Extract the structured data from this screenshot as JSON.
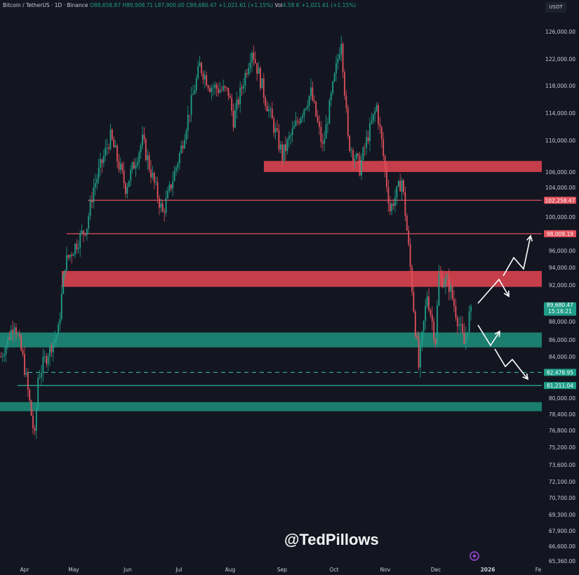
{
  "header": {
    "symbol": "Bitcoin / TetherUS · 1D · Binance",
    "open": "O88,658.87",
    "high": "H89,908.71",
    "low": "L87,900.00",
    "close": "C89,680.47",
    "change": "+1,021.61 (+1.15%)",
    "vol_label": "Vol",
    "vol": "4.58 K",
    "vol_change": "+1,021.61 (+1.15%)"
  },
  "currency_button": "USDT",
  "watermark": "@TedPillows",
  "colors": {
    "background": "#131621",
    "up": "#1f9e89",
    "down": "#e0505c",
    "resistance_zone": "#d9434f",
    "support_zone": "#1d8a78",
    "arrow": "#ffffff",
    "axis_text": "#c9ccd4"
  },
  "chart_data": {
    "type": "candlestick",
    "timeframe": "1D",
    "approximate_close_path": [
      [
        "2025-03-18",
        84000
      ],
      [
        "2025-03-26",
        88000
      ],
      [
        "2025-04-01",
        83000
      ],
      [
        "2025-04-07",
        76000
      ],
      [
        "2025-04-09",
        82000
      ],
      [
        "2025-04-21",
        87000
      ],
      [
        "2025-04-25",
        94500
      ],
      [
        "2025-05-08",
        99000
      ],
      [
        "2025-05-12",
        104000
      ],
      [
        "2025-05-22",
        110500
      ],
      [
        "2025-05-31",
        104000
      ],
      [
        "2025-06-10",
        110000
      ],
      [
        "2025-06-22",
        100500
      ],
      [
        "2025-07-03",
        109000
      ],
      [
        "2025-07-14",
        121000
      ],
      [
        "2025-07-20",
        118000
      ],
      [
        "2025-07-31",
        117000
      ],
      [
        "2025-08-03",
        113000
      ],
      [
        "2025-08-14",
        123500
      ],
      [
        "2025-08-22",
        116000
      ],
      [
        "2025-09-01",
        108000
      ],
      [
        "2025-09-18",
        117000
      ],
      [
        "2025-09-25",
        109000
      ],
      [
        "2025-10-06",
        125000
      ],
      [
        "2025-10-10",
        110000
      ],
      [
        "2025-10-17",
        106500
      ],
      [
        "2025-10-27",
        115000
      ],
      [
        "2025-11-04",
        101000
      ],
      [
        "2025-11-11",
        105000
      ],
      [
        "2025-11-21",
        83000
      ],
      [
        "2025-11-26",
        91000
      ],
      [
        "2025-12-01",
        86000
      ],
      [
        "2025-12-03",
        93000
      ],
      [
        "2025-12-09",
        92000
      ],
      [
        "2025-12-18",
        85500
      ],
      [
        "2025-12-22",
        89680.47
      ]
    ],
    "x_tick_labels": [
      "Apr",
      "May",
      "Jun",
      "Jul",
      "Aug",
      "Sep",
      "Oct",
      "Nov",
      "Dec",
      "2026",
      "Fe"
    ],
    "y_tick_labels": [
      "126,000.00",
      "122,000.00",
      "118,000.00",
      "114,000.00",
      "110,000.00",
      "106,000.00",
      "104,000.00",
      "100,000.00",
      "96,000.00",
      "94,000.00",
      "92,000.00",
      "88,000.00",
      "86,000.00",
      "84,000.00",
      "80,000.00",
      "78,400.00",
      "76,800.00",
      "75,200.00",
      "73,600.00",
      "72,100.00",
      "70,700.00",
      "69,300.00",
      "67,900.00",
      "66,600.00",
      "65,360.00"
    ],
    "price_labels": [
      {
        "value": "102,258.47",
        "kind": "resistance"
      },
      {
        "value": "98,009.19",
        "kind": "resistance"
      },
      {
        "value": "82,478.95",
        "kind": "support"
      },
      {
        "value": "81,211.04",
        "kind": "support"
      }
    ],
    "last_price": {
      "value": "89,680.47",
      "countdown": "15:16:21"
    },
    "zones": [
      {
        "kind": "resistance",
        "low": 106000,
        "high": 107400
      },
      {
        "kind": "resistance",
        "low": 91800,
        "high": 93600
      },
      {
        "kind": "support",
        "low": 85100,
        "high": 86800
      },
      {
        "kind": "support",
        "low": 78700,
        "high": 79600
      }
    ],
    "lines": [
      {
        "value": 102258.47,
        "style": "solid",
        "kind": "resistance"
      },
      {
        "value": 98009.19,
        "style": "solid",
        "kind": "resistance"
      },
      {
        "value": 82478.95,
        "style": "dashed",
        "kind": "support"
      },
      {
        "value": 81211.04,
        "style": "solid",
        "kind": "support"
      }
    ],
    "projections": [
      "bullish: break above 92k-94k zone toward 98,009",
      "bearish: drop to 86k zone then toward 82,479"
    ]
  }
}
